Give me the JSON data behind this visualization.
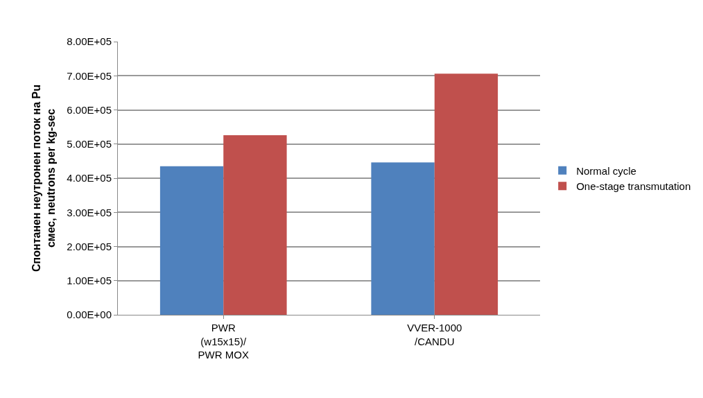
{
  "chart_data": {
    "type": "bar",
    "ylabel": "Спонтанен неутронен поток на Pu смес, neutrons per kg-sec",
    "categories": [
      "PWR (w15x15)/ PWR MOX",
      "VVER-1000 /CANDU"
    ],
    "series": [
      {
        "name": "Normal cycle",
        "color": "#4f81bd",
        "values": [
          435000,
          446000
        ]
      },
      {
        "name": "One-stage transmutation",
        "color": "#c0504d",
        "values": [
          526000,
          706000
        ]
      }
    ],
    "ylim": [
      0,
      800000
    ],
    "yticks": [
      {
        "value": 0,
        "label": "0.00E+00"
      },
      {
        "value": 100000,
        "label": "1.00E+05"
      },
      {
        "value": 200000,
        "label": "2.00E+05"
      },
      {
        "value": 300000,
        "label": "3.00E+05"
      },
      {
        "value": 400000,
        "label": "4.00E+05"
      },
      {
        "value": 500000,
        "label": "5.00E+05"
      },
      {
        "value": 600000,
        "label": "6.00E+05"
      },
      {
        "value": 700000,
        "label": "7.00E+05"
      },
      {
        "value": 800000,
        "label": "8.00E+05"
      }
    ],
    "grid": "y",
    "legend": "right"
  }
}
